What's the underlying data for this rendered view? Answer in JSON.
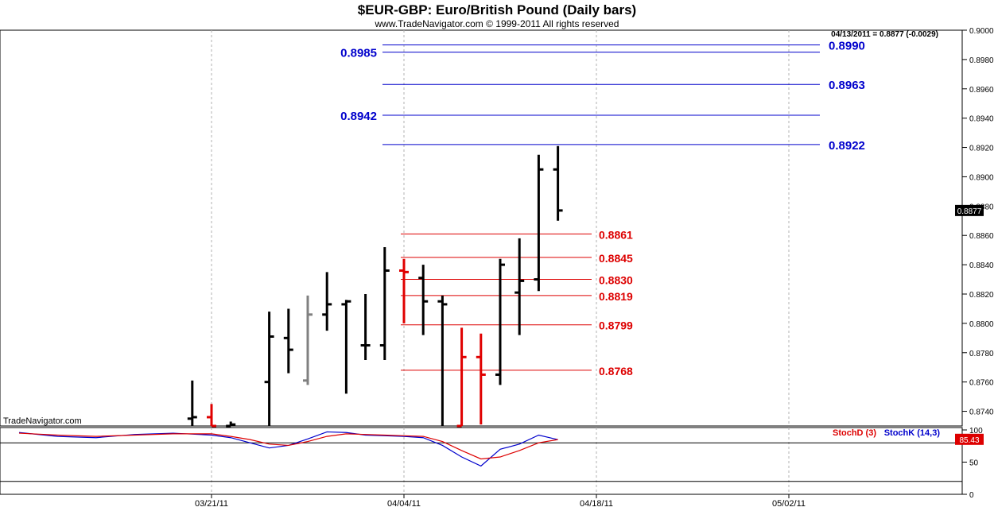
{
  "header": {
    "title": "$EUR-GBP:  Euro/British Pound  (Daily bars)",
    "subtitle": "www.TradeNavigator.com © 1999-2011 All rights reserved",
    "readout": "04/13/2011 = 0.8877 (-0.0029)",
    "watermark": "TradeNavigator.com"
  },
  "colors": {
    "bar_up": "#000000",
    "bar_down": "#e00000",
    "bar_neutral": "#808080",
    "resistance": "#0000cc",
    "support": "#dd0000",
    "stoch_k": "#0000cc",
    "stoch_d": "#dd0000",
    "grid": "#b0b0b0"
  },
  "chart_data": [
    {
      "type": "bar",
      "subtype": "ohlc",
      "title": "$EUR-GBP:  Euro/British Pound  (Daily bars)",
      "ylim": [
        0.873,
        0.9
      ],
      "y_ticks": [
        "0.9000",
        "0.8980",
        "0.8960",
        "0.8940",
        "0.8920",
        "0.8900",
        "0.8880",
        "0.8860",
        "0.8840",
        "0.8820",
        "0.8800",
        "0.8780",
        "0.8760",
        "0.8740"
      ],
      "x_ticks": [
        {
          "label": "03/21/11",
          "index": 10
        },
        {
          "label": "04/04/11",
          "index": 20
        },
        {
          "label": "04/18/11",
          "index": 30
        },
        {
          "label": "05/02/11",
          "index": 40
        }
      ],
      "grid": "vertical dashed",
      "last_price": {
        "label": "0.8877",
        "value": 0.8877
      },
      "bars": [
        {
          "i": 9,
          "o": 0.8735,
          "h": 0.8761,
          "l": 0.873,
          "c": 0.8736,
          "color": "up"
        },
        {
          "i": 10,
          "o": 0.8736,
          "h": 0.8745,
          "l": 0.873,
          "c": 0.873,
          "color": "down"
        },
        {
          "i": 11,
          "o": 0.873,
          "h": 0.8733,
          "l": 0.873,
          "c": 0.8731,
          "color": "up"
        },
        {
          "i": 13,
          "o": 0.876,
          "h": 0.8808,
          "l": 0.873,
          "c": 0.8791,
          "color": "up"
        },
        {
          "i": 14,
          "o": 0.879,
          "h": 0.881,
          "l": 0.8766,
          "c": 0.8782,
          "color": "up"
        },
        {
          "i": 15,
          "o": 0.8761,
          "h": 0.8819,
          "l": 0.8758,
          "c": 0.8806,
          "color": "neutral"
        },
        {
          "i": 16,
          "o": 0.8806,
          "h": 0.8835,
          "l": 0.8795,
          "c": 0.8813,
          "color": "up"
        },
        {
          "i": 17,
          "o": 0.8813,
          "h": 0.8816,
          "l": 0.8752,
          "c": 0.8815,
          "color": "up"
        },
        {
          "i": 18,
          "o": 0.8785,
          "h": 0.882,
          "l": 0.8775,
          "c": 0.8785,
          "color": "up"
        },
        {
          "i": 19,
          "o": 0.8785,
          "h": 0.8852,
          "l": 0.8775,
          "c": 0.8836,
          "color": "up"
        },
        {
          "i": 20,
          "o": 0.8836,
          "h": 0.8844,
          "l": 0.88,
          "c": 0.8835,
          "color": "down"
        },
        {
          "i": 21,
          "o": 0.8831,
          "h": 0.884,
          "l": 0.8792,
          "c": 0.8815,
          "color": "up"
        },
        {
          "i": 22,
          "o": 0.8815,
          "h": 0.8819,
          "l": 0.873,
          "c": 0.8813,
          "color": "up"
        },
        {
          "i": 23,
          "o": 0.873,
          "h": 0.8797,
          "l": 0.873,
          "c": 0.8777,
          "color": "down"
        },
        {
          "i": 24,
          "o": 0.8777,
          "h": 0.8793,
          "l": 0.8731,
          "c": 0.8765,
          "color": "down"
        },
        {
          "i": 25,
          "o": 0.8765,
          "h": 0.8844,
          "l": 0.8758,
          "c": 0.884,
          "color": "up"
        },
        {
          "i": 26,
          "o": 0.8821,
          "h": 0.8858,
          "l": 0.8792,
          "c": 0.8829,
          "color": "up"
        },
        {
          "i": 27,
          "o": 0.883,
          "h": 0.8915,
          "l": 0.8822,
          "c": 0.8905,
          "color": "up"
        },
        {
          "i": 28,
          "o": 0.8905,
          "h": 0.8921,
          "l": 0.887,
          "c": 0.8877,
          "color": "up"
        }
      ],
      "resistance_levels": [
        {
          "label": "0.8990",
          "value": 0.899,
          "label_side": "right"
        },
        {
          "label": "0.8985",
          "value": 0.8985,
          "label_side": "left"
        },
        {
          "label": "0.8963",
          "value": 0.8963,
          "label_side": "right"
        },
        {
          "label": "0.8942",
          "value": 0.8942,
          "label_side": "left"
        },
        {
          "label": "0.8922",
          "value": 0.8922,
          "label_side": "right"
        }
      ],
      "support_levels": [
        {
          "label": "0.8861",
          "value": 0.8861
        },
        {
          "label": "0.8845",
          "value": 0.8845
        },
        {
          "label": "0.8830",
          "value": 0.883
        },
        {
          "label": "0.8819",
          "value": 0.8819
        },
        {
          "label": "0.8799",
          "value": 0.8799
        },
        {
          "label": "0.8768",
          "value": 0.8768
        }
      ]
    },
    {
      "type": "line",
      "title": "",
      "ylim": [
        0,
        100
      ],
      "y_ticks": [
        "100",
        "50",
        "0"
      ],
      "reference_lines": [
        80,
        20
      ],
      "current_value": {
        "label": "85.43",
        "value": 85.43
      },
      "series": [
        {
          "name": "StochK (14,3)",
          "color_key": "stoch_k",
          "points": [
            [
              0,
              96
            ],
            [
              2,
              90
            ],
            [
              4,
              88
            ],
            [
              6,
              93
            ],
            [
              8,
              95
            ],
            [
              10,
              92
            ],
            [
              11,
              88
            ],
            [
              12,
              80
            ],
            [
              13,
              72
            ],
            [
              14,
              76
            ],
            [
              15,
              86
            ],
            [
              16,
              97
            ],
            [
              17,
              96
            ],
            [
              18,
              92
            ],
            [
              19,
              91
            ],
            [
              20,
              90
            ],
            [
              21,
              88
            ],
            [
              22,
              76
            ],
            [
              23,
              58
            ],
            [
              24,
              44
            ],
            [
              25,
              70
            ],
            [
              26,
              78
            ],
            [
              27,
              92
            ],
            [
              28,
              85
            ]
          ]
        },
        {
          "name": "StochD (3)",
          "color_key": "stoch_d",
          "points": [
            [
              0,
              95
            ],
            [
              2,
              92
            ],
            [
              4,
              90
            ],
            [
              6,
              92
            ],
            [
              8,
              94
            ],
            [
              10,
              94
            ],
            [
              11,
              90
            ],
            [
              12,
              85
            ],
            [
              13,
              78
            ],
            [
              14,
              76
            ],
            [
              15,
              82
            ],
            [
              16,
              90
            ],
            [
              17,
              94
            ],
            [
              18,
              93
            ],
            [
              19,
              92
            ],
            [
              20,
              91
            ],
            [
              21,
              90
            ],
            [
              22,
              82
            ],
            [
              23,
              68
            ],
            [
              24,
              55
            ],
            [
              25,
              58
            ],
            [
              26,
              68
            ],
            [
              27,
              80
            ],
            [
              28,
              85
            ]
          ]
        }
      ]
    }
  ]
}
